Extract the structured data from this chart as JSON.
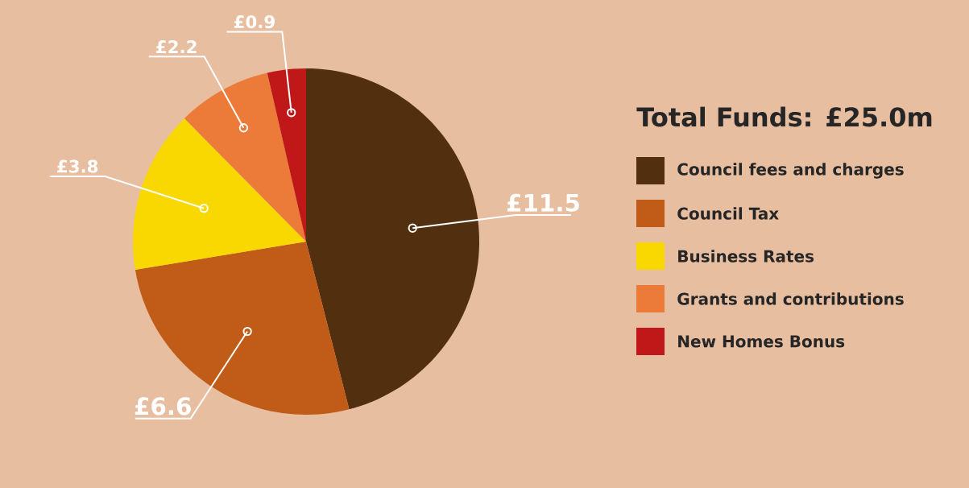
{
  "chart_data": {
    "type": "pie",
    "title": "Total Funds: £25.0m",
    "categories": [
      "Council fees and charges",
      "Council Tax",
      "Business Rates",
      "Grants and contributions",
      "New Homes Bonus"
    ],
    "values": [
      11.5,
      6.6,
      3.8,
      2.2,
      0.9
    ],
    "value_labels": [
      "£11.5",
      "£6.6",
      "£3.8",
      "£2.2",
      "£0.9"
    ],
    "colors": [
      "#52300f",
      "#c05c18",
      "#f8d800",
      "#ec7a38",
      "#c01818"
    ],
    "legend": "right"
  }
}
